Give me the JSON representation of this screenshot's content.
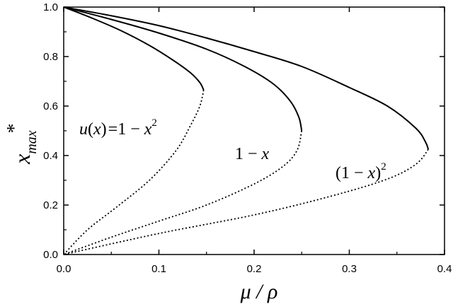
{
  "chart_data": {
    "type": "line",
    "xlabel": "μ / ρ",
    "ylabel_main": "x",
    "ylabel_sub": "max",
    "ylabel_sup": "*",
    "xlim": [
      0.0,
      0.4
    ],
    "ylim": [
      0.0,
      1.0
    ],
    "xticks": [
      "0.0",
      "0.1",
      "0.2",
      "0.3",
      "0.4"
    ],
    "yticks": [
      "0.0",
      "0.2",
      "0.4",
      "0.6",
      "0.8",
      "1.0"
    ],
    "grid": false,
    "series": [
      {
        "name": "u(x) = 1 − x²",
        "stable": [
          [
            0.0,
            1.0
          ],
          [
            0.03,
            0.955
          ],
          [
            0.06,
            0.905
          ],
          [
            0.09,
            0.845
          ],
          [
            0.115,
            0.785
          ],
          [
            0.133,
            0.735
          ],
          [
            0.143,
            0.695
          ],
          [
            0.147,
            0.665
          ]
        ],
        "unstable": [
          [
            0.147,
            0.665
          ],
          [
            0.143,
            0.6
          ],
          [
            0.133,
            0.52
          ],
          [
            0.118,
            0.42
          ],
          [
            0.09,
            0.3
          ],
          [
            0.055,
            0.19
          ],
          [
            0.025,
            0.1
          ],
          [
            0.0,
            0.0
          ]
        ]
      },
      {
        "name": "1 − x",
        "stable": [
          [
            0.0,
            1.0
          ],
          [
            0.05,
            0.95
          ],
          [
            0.1,
            0.895
          ],
          [
            0.15,
            0.83
          ],
          [
            0.19,
            0.76
          ],
          [
            0.22,
            0.69
          ],
          [
            0.238,
            0.62
          ],
          [
            0.247,
            0.555
          ],
          [
            0.25,
            0.5
          ]
        ],
        "unstable": [
          [
            0.25,
            0.5
          ],
          [
            0.245,
            0.42
          ],
          [
            0.23,
            0.355
          ],
          [
            0.2,
            0.285
          ],
          [
            0.15,
            0.2
          ],
          [
            0.1,
            0.135
          ],
          [
            0.05,
            0.07
          ],
          [
            0.0,
            0.0
          ]
        ]
      },
      {
        "name": "(1 − x)²",
        "stable": [
          [
            0.0,
            1.0
          ],
          [
            0.05,
            0.965
          ],
          [
            0.1,
            0.925
          ],
          [
            0.15,
            0.875
          ],
          [
            0.2,
            0.82
          ],
          [
            0.25,
            0.76
          ],
          [
            0.3,
            0.675
          ],
          [
            0.34,
            0.6
          ],
          [
            0.37,
            0.51
          ],
          [
            0.38,
            0.455
          ],
          [
            0.383,
            0.425
          ]
        ],
        "unstable": [
          [
            0.383,
            0.425
          ],
          [
            0.37,
            0.365
          ],
          [
            0.34,
            0.305
          ],
          [
            0.28,
            0.235
          ],
          [
            0.2,
            0.16
          ],
          [
            0.1,
            0.085
          ],
          [
            0.0,
            0.0
          ]
        ]
      }
    ],
    "annotations": {
      "curve1": {
        "u": "u",
        "x_open": "(",
        "x": "x",
        "x_close": ")",
        "eq": "=1 − ",
        "x2": "x",
        "sq": "2"
      },
      "curve2": {
        "one_minus": "1 − ",
        "x": "x"
      },
      "curve3": {
        "open": "(1 − ",
        "x": "x",
        "close": ")",
        "sq": "2"
      }
    }
  }
}
